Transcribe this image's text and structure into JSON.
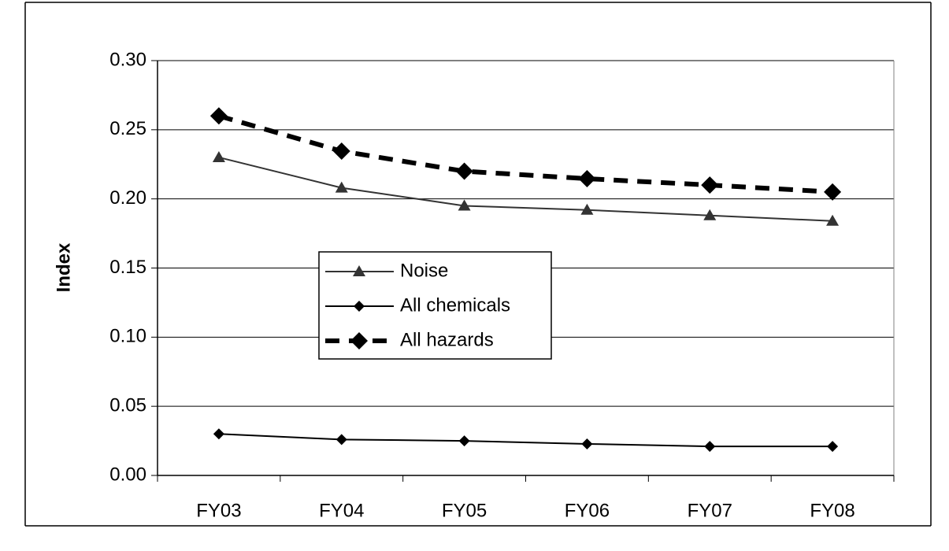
{
  "chart_data": {
    "type": "line",
    "y_label": "Index",
    "categories": [
      "FY03",
      "FY04",
      "FY05",
      "FY06",
      "FY07",
      "FY08"
    ],
    "series": [
      {
        "name": "Noise",
        "color": "#333333",
        "marker": "triangle",
        "line_style": "solid",
        "values": [
          0.23,
          0.208,
          0.195,
          0.192,
          0.188,
          0.184
        ]
      },
      {
        "name": "All chemicals",
        "color": "#000000",
        "marker": "diamond",
        "line_style": "solid",
        "values": [
          0.03,
          0.026,
          0.025,
          0.0228,
          0.021,
          0.021
        ]
      },
      {
        "name": "All hazards",
        "color": "#000000",
        "marker": "diamond-large",
        "line_style": "dashed",
        "values": [
          0.26,
          0.2345,
          0.22,
          0.2146,
          0.21,
          0.205
        ]
      }
    ],
    "ylim": [
      0,
      0.3
    ],
    "yticks": [
      {
        "value": 0,
        "label": "0.00"
      },
      {
        "value": 0.05,
        "label": "0.05"
      },
      {
        "value": 0.1,
        "label": "0.10"
      },
      {
        "value": 0.15,
        "label": "0.15"
      },
      {
        "value": 0.2,
        "label": "0.20"
      },
      {
        "value": 0.25,
        "label": "0.25"
      },
      {
        "value": 0.3,
        "label": "0.30"
      }
    ],
    "grid": true
  }
}
